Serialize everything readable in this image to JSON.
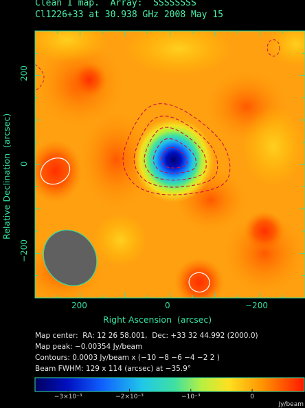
{
  "chart_data": {
    "type": "heatmap",
    "title_line1": "Clean I map.  Array:  SSSSSSSS",
    "title_line2": "Cl1226+33 at 30.938 GHz 2008 May 15",
    "xlabel": "Right Ascension  (arcsec)",
    "ylabel": "Relative Declination  (arcsec)",
    "xlim": [
      300,
      -300
    ],
    "ylim": [
      -300,
      300
    ],
    "x_ticks": [
      200,
      0,
      -200
    ],
    "x_tick_labels": [
      "200",
      "0",
      "−200"
    ],
    "y_ticks": [
      200,
      0,
      -200
    ],
    "y_tick_labels": [
      "200",
      "0",
      "−200"
    ],
    "annotations": [
      "Map center:  RA: 12 26 58.001,  Dec: +33 32 44.992 (2000.0)",
      "Map peak: −0.00354 Jy/beam",
      "Contours: 0.0003 Jy/beam x (−10 −8 −6 −4 −2 2 )",
      "Beam FWHM: 129 x 114 (arcsec) at −35.9°"
    ],
    "map_peak_jy_per_beam": -0.00354,
    "contour_unit_jy_per_beam": 0.0003,
    "contour_levels": [
      -10,
      -8,
      -6,
      -4,
      -2,
      2
    ],
    "beam": {
      "major_arcsec": 129,
      "minor_arcsec": 114,
      "pa_deg": -35.9
    },
    "sources": [
      {
        "name": "central decrement",
        "ra": -8,
        "dec": 10,
        "peak_jy": -0.00354
      },
      {
        "name": "positive blob",
        "ra": 255,
        "dec": -15,
        "level": 2
      },
      {
        "name": "positive blob",
        "ra": -65,
        "dec": -265,
        "level": 2
      }
    ],
    "colorbar": {
      "ticks": [
        -0.003,
        -0.002,
        -0.001,
        0
      ],
      "tick_labels": [
        "−3×10⁻³",
        "−2×10⁻³",
        "−10⁻³",
        "0"
      ],
      "range": [
        -0.00354,
        0.00085
      ],
      "unit": "Jy/beam"
    }
  },
  "colors": {
    "background": "#000000",
    "axis": "#33e0a0",
    "negative_contour": "#cc1040",
    "positive_contour": "#ffffff",
    "beam_fill": "#606060",
    "beam_outline": "#33e0a0"
  }
}
